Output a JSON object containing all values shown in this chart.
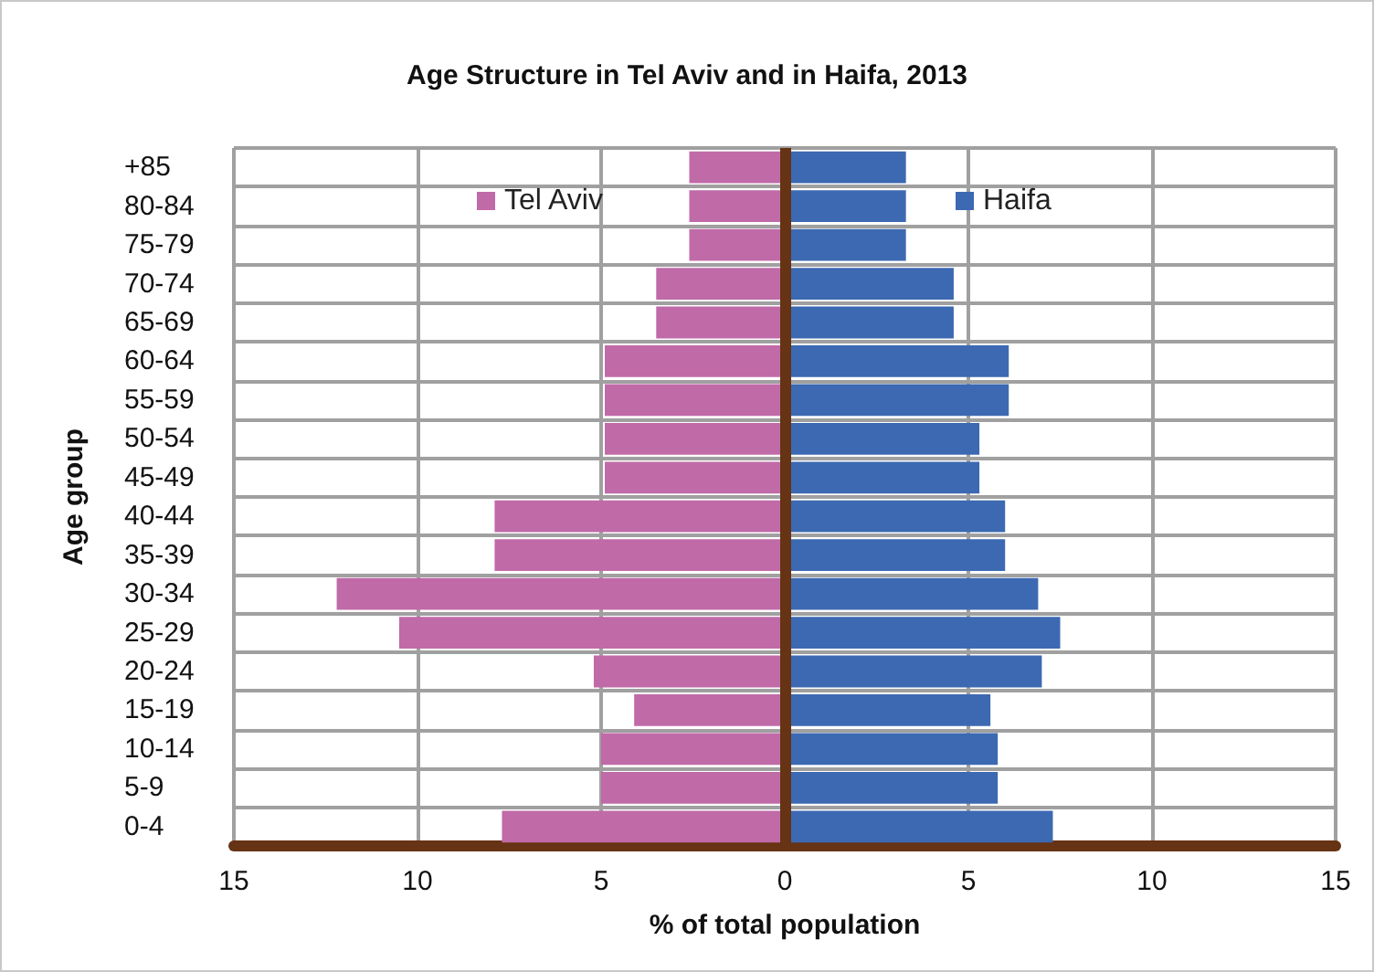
{
  "chart_data": {
    "type": "bar",
    "orientation": "horizontal",
    "title": "Age Structure in Tel Aviv and in Haifa, 2013",
    "xlabel": "% of total population",
    "ylabel": "Age group",
    "categories": [
      "+85",
      "80-84",
      "75-79",
      "70-74",
      "65-69",
      "60-64",
      "55-59",
      "50-54",
      "45-49",
      "40-44",
      "35-39",
      "30-34",
      "25-29",
      "20-24",
      "15-19",
      "10-14",
      "5-9",
      "0-4"
    ],
    "series": [
      {
        "name": "Tel Aviv",
        "color": "#c06aa8",
        "values": [
          -2.6,
          -2.6,
          -2.6,
          -3.5,
          -3.5,
          -4.9,
          -4.9,
          -4.9,
          -4.9,
          -7.9,
          -7.9,
          -12.2,
          -10.5,
          -5.2,
          -4.1,
          -5.0,
          -5.0,
          -7.7
        ]
      },
      {
        "name": "Haifa",
        "color": "#3c69b2",
        "values": [
          3.3,
          3.3,
          3.3,
          4.6,
          4.6,
          6.1,
          6.1,
          5.3,
          5.3,
          6.0,
          6.0,
          6.9,
          7.5,
          7.0,
          5.6,
          5.8,
          5.8,
          7.3
        ]
      }
    ],
    "xlim": [
      -15,
      15
    ],
    "xticks": [
      {
        "value": -15,
        "label": "15"
      },
      {
        "value": -10,
        "label": "10"
      },
      {
        "value": -5,
        "label": "5"
      },
      0,
      5,
      10,
      15
    ],
    "stacked": true,
    "ref_lines": [
      {
        "axis": "x",
        "value": 0,
        "color": "#663314"
      }
    ],
    "grid": true,
    "legend": "top"
  }
}
